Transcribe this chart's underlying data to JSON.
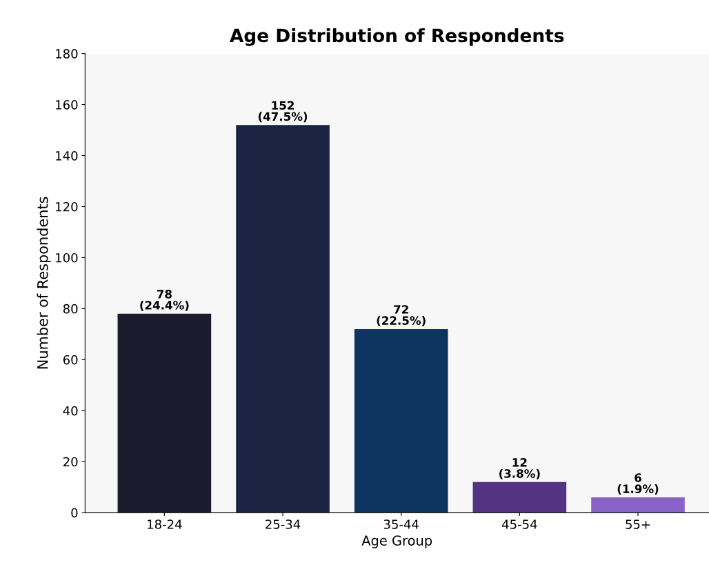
{
  "chart_data": {
    "type": "bar",
    "title": "Age Distribution of Respondents",
    "xlabel": "Age Group",
    "ylabel": "Number of Respondents",
    "categories": [
      "18-24",
      "25-34",
      "35-44",
      "45-54",
      "55+"
    ],
    "values": [
      78,
      152,
      72,
      12,
      6
    ],
    "colors": [
      "#1c1b2e",
      "#1a2342",
      "#0f3460",
      "#533483",
      "#8a63c9"
    ],
    "value_labels": [
      "78\n(24.4%)",
      "152\n(47.5%)",
      "72\n(22.5%)",
      "12\n(3.8%)",
      "6\n(1.9%)"
    ],
    "ylim": [
      0,
      180
    ],
    "yticks": [
      0,
      20,
      40,
      60,
      80,
      100,
      120,
      140,
      160,
      180
    ],
    "grid": false,
    "legend": false
  }
}
